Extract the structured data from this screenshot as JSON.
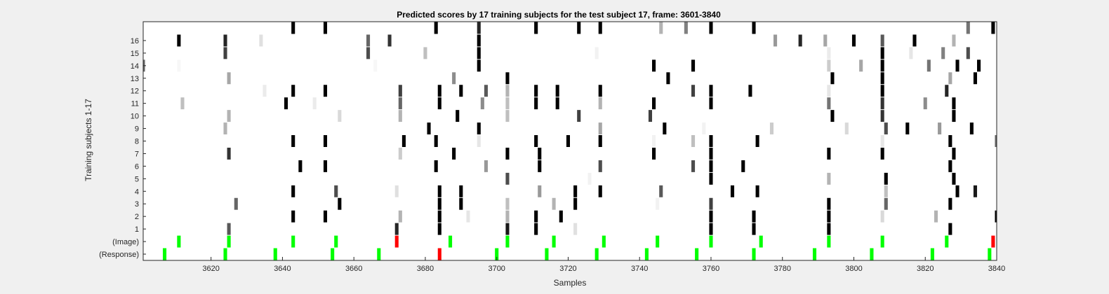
{
  "chart_data": {
    "type": "heatmap",
    "title": "Predicted scores by 17 training subjects for the test subject 17, frame: 3601-3840",
    "xlabel": "Samples",
    "ylabel": "Training subjects 1-17",
    "xlim": [
      3601,
      3840
    ],
    "xticks": [
      3620,
      3640,
      3660,
      3680,
      3700,
      3720,
      3740,
      3760,
      3780,
      3800,
      3820,
      3840
    ],
    "rows": [
      "(Response)",
      "(Image)",
      "1",
      "2",
      "3",
      "4",
      "5",
      "6",
      "7",
      "8",
      "9",
      "10",
      "11",
      "12",
      "13",
      "14",
      "15",
      "16",
      ""
    ],
    "colors": {
      "green": "#00ff00",
      "red": "#ff0000",
      "background": "#ffffff",
      "figure": "#f0f0f0"
    },
    "value_scale": "grayscale: 0 = white, 1 = black",
    "marks": {
      "(Response)": [
        [
          3607,
          "g"
        ],
        [
          3624,
          "g"
        ],
        [
          3638,
          "g"
        ],
        [
          3654,
          "g"
        ],
        [
          3667,
          "g"
        ],
        [
          3684,
          "r"
        ],
        [
          3700,
          "g"
        ],
        [
          3714,
          "g"
        ],
        [
          3728,
          "g"
        ],
        [
          3742,
          "g"
        ],
        [
          3756,
          "g"
        ],
        [
          3772,
          "g"
        ],
        [
          3789,
          "g"
        ],
        [
          3805,
          "g"
        ],
        [
          3822,
          "g"
        ],
        [
          3838,
          "g"
        ]
      ],
      "(Image)": [
        [
          3611,
          "g"
        ],
        [
          3625,
          "g"
        ],
        [
          3643,
          "g"
        ],
        [
          3655,
          "g"
        ],
        [
          3672,
          "r"
        ],
        [
          3687,
          "g"
        ],
        [
          3703,
          "g"
        ],
        [
          3716,
          "g"
        ],
        [
          3730,
          "g"
        ],
        [
          3745,
          "g"
        ],
        [
          3760,
          "g"
        ],
        [
          3774,
          "g"
        ],
        [
          3793,
          "g"
        ],
        [
          3808,
          "g"
        ],
        [
          3826,
          "g"
        ],
        [
          3839,
          "r"
        ]
      ],
      "1": [
        [
          3625,
          0.65
        ],
        [
          3672,
          0.85
        ],
        [
          3684,
          1
        ],
        [
          3703,
          0.9
        ],
        [
          3711,
          1
        ],
        [
          3722,
          0.12
        ],
        [
          3760,
          1
        ],
        [
          3772,
          1
        ],
        [
          3793,
          1
        ],
        [
          3827,
          1
        ]
      ],
      "2": [
        [
          3643,
          1
        ],
        [
          3652,
          1
        ],
        [
          3673,
          0.3
        ],
        [
          3684,
          1
        ],
        [
          3692,
          0.1
        ],
        [
          3703,
          0.3
        ],
        [
          3711,
          1
        ],
        [
          3718,
          1
        ],
        [
          3760,
          1
        ],
        [
          3772,
          1
        ],
        [
          3793,
          1
        ],
        [
          3808,
          0.15
        ],
        [
          3823,
          0.3
        ],
        [
          3840,
          1
        ]
      ],
      "3": [
        [
          3627,
          0.6
        ],
        [
          3656,
          1
        ],
        [
          3684,
          1
        ],
        [
          3690,
          1
        ],
        [
          3703,
          0.25
        ],
        [
          3716,
          0.3
        ],
        [
          3722,
          1
        ],
        [
          3745,
          0.05
        ],
        [
          3760,
          0.75
        ],
        [
          3793,
          1
        ],
        [
          3809,
          0.6
        ],
        [
          3827,
          1
        ]
      ],
      "4": [
        [
          3643,
          1
        ],
        [
          3655,
          0.7
        ],
        [
          3672,
          0.12
        ],
        [
          3684,
          1
        ],
        [
          3690,
          1
        ],
        [
          3712,
          0.4
        ],
        [
          3722,
          1
        ],
        [
          3729,
          1
        ],
        [
          3746,
          0.65
        ],
        [
          3766,
          1
        ],
        [
          3773,
          1
        ],
        [
          3809,
          0.25
        ],
        [
          3829,
          1
        ],
        [
          3834,
          0.9
        ]
      ],
      "5": [
        [
          3703,
          0.7
        ],
        [
          3726,
          0.05
        ],
        [
          3760,
          1
        ],
        [
          3793,
          0.3
        ],
        [
          3809,
          1
        ],
        [
          3828,
          1
        ]
      ],
      "6": [
        [
          3645,
          1
        ],
        [
          3652,
          1
        ],
        [
          3683,
          1
        ],
        [
          3697,
          0.4
        ],
        [
          3712,
          1
        ],
        [
          3729,
          0.7
        ],
        [
          3755,
          0.7
        ],
        [
          3760,
          1
        ],
        [
          3769,
          1
        ],
        [
          3827,
          1
        ]
      ],
      "7": [
        [
          3625,
          0.8
        ],
        [
          3673,
          0.2
        ],
        [
          3688,
          1
        ],
        [
          3703,
          1
        ],
        [
          3712,
          1
        ],
        [
          3744,
          1
        ],
        [
          3760,
          1
        ],
        [
          3793,
          1
        ],
        [
          3808,
          1
        ],
        [
          3828,
          1
        ]
      ],
      "8": [
        [
          3643,
          1
        ],
        [
          3652,
          1
        ],
        [
          3674,
          1
        ],
        [
          3683,
          1
        ],
        [
          3695,
          0.1
        ],
        [
          3711,
          1
        ],
        [
          3720,
          1
        ],
        [
          3729,
          1
        ],
        [
          3744,
          0.05
        ],
        [
          3755,
          0.25
        ],
        [
          3760,
          1
        ],
        [
          3773,
          1
        ],
        [
          3808,
          0.1
        ],
        [
          3827,
          1
        ],
        [
          3840,
          0.6
        ]
      ],
      "9": [
        [
          3624,
          0.3
        ],
        [
          3681,
          1
        ],
        [
          3695,
          1
        ],
        [
          3729,
          0.35
        ],
        [
          3747,
          1
        ],
        [
          3758,
          0.05
        ],
        [
          3777,
          0.2
        ],
        [
          3798,
          0.15
        ],
        [
          3809,
          0.7
        ],
        [
          3815,
          1
        ],
        [
          3824,
          0.4
        ],
        [
          3833,
          1
        ]
      ],
      "10": [
        [
          3625,
          0.3
        ],
        [
          3656,
          0.15
        ],
        [
          3673,
          0.3
        ],
        [
          3689,
          1
        ],
        [
          3703,
          0.25
        ],
        [
          3723,
          0.75
        ],
        [
          3743,
          0.75
        ],
        [
          3794,
          1
        ],
        [
          3808,
          0.8
        ],
        [
          3828,
          1
        ]
      ],
      "11": [
        [
          3612,
          0.25
        ],
        [
          3641,
          1
        ],
        [
          3649,
          0.08
        ],
        [
          3673,
          0.6
        ],
        [
          3684,
          1
        ],
        [
          3696,
          0.45
        ],
        [
          3703,
          0.25
        ],
        [
          3711,
          1
        ],
        [
          3717,
          1
        ],
        [
          3729,
          0.3
        ],
        [
          3744,
          1
        ],
        [
          3760,
          1
        ],
        [
          3793,
          0.55
        ],
        [
          3808,
          0.8
        ],
        [
          3820,
          0.45
        ],
        [
          3828,
          1
        ]
      ],
      "12": [
        [
          3635,
          0.08
        ],
        [
          3643,
          1
        ],
        [
          3652,
          1
        ],
        [
          3673,
          0.75
        ],
        [
          3684,
          1
        ],
        [
          3690,
          1
        ],
        [
          3697,
          0.65
        ],
        [
          3703,
          0.3
        ],
        [
          3711,
          1
        ],
        [
          3717,
          1
        ],
        [
          3729,
          1
        ],
        [
          3755,
          0.75
        ],
        [
          3760,
          1
        ],
        [
          3771,
          1
        ],
        [
          3793,
          0.1
        ],
        [
          3808,
          1
        ],
        [
          3826,
          0.85
        ]
      ],
      "13": [
        [
          3625,
          0.35
        ],
        [
          3688,
          0.45
        ],
        [
          3703,
          1
        ],
        [
          3748,
          1
        ],
        [
          3794,
          1
        ],
        [
          3808,
          1
        ],
        [
          3827,
          0.35
        ],
        [
          3834,
          1
        ]
      ],
      "14": [
        [
          3601,
          0.6
        ],
        [
          3611,
          0.03
        ],
        [
          3666,
          0.03
        ],
        [
          3695,
          1
        ],
        [
          3744,
          1
        ],
        [
          3755,
          1
        ],
        [
          3793,
          0.2
        ],
        [
          3802,
          0.35
        ],
        [
          3808,
          1
        ],
        [
          3821,
          0.55
        ],
        [
          3829,
          1
        ],
        [
          3835,
          1
        ]
      ],
      "15": [
        [
          3624,
          0.75
        ],
        [
          3664,
          0.7
        ],
        [
          3680,
          0.25
        ],
        [
          3695,
          1
        ],
        [
          3728,
          0.05
        ],
        [
          3793,
          0.08
        ],
        [
          3808,
          1
        ],
        [
          3816,
          0.1
        ],
        [
          3825,
          0.5
        ],
        [
          3832,
          0.7
        ]
      ],
      "16": [
        [
          3611,
          1
        ],
        [
          3624,
          0.85
        ],
        [
          3634,
          0.12
        ],
        [
          3664,
          0.6
        ],
        [
          3670,
          0.8
        ],
        [
          3695,
          1
        ],
        [
          3778,
          0.4
        ],
        [
          3785,
          0.85
        ],
        [
          3792,
          0.35
        ],
        [
          3800,
          1
        ],
        [
          3808,
          0.65
        ],
        [
          3817,
          1
        ],
        [
          3828,
          0.3
        ]
      ],
      "": [
        [
          3643,
          1
        ],
        [
          3652,
          1
        ],
        [
          3683,
          1
        ],
        [
          3695,
          0.85
        ],
        [
          3711,
          1
        ],
        [
          3723,
          1
        ],
        [
          3729,
          1
        ],
        [
          3746,
          0.3
        ],
        [
          3753,
          0.5
        ],
        [
          3760,
          1
        ],
        [
          3772,
          1
        ],
        [
          3832,
          0.55
        ],
        [
          3839,
          1
        ]
      ]
    }
  }
}
